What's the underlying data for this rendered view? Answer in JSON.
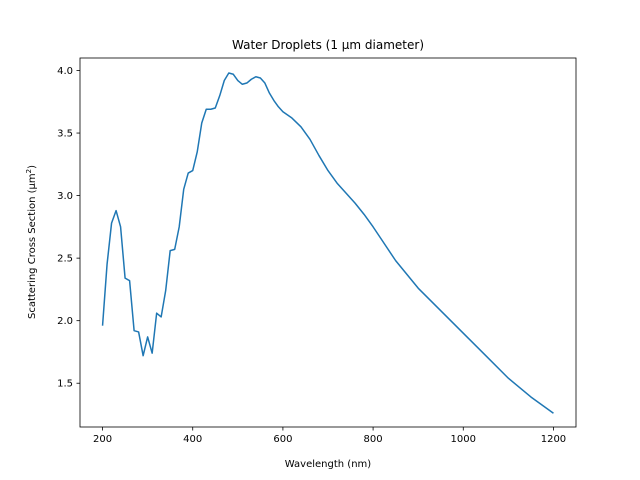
{
  "chart_data": {
    "type": "line",
    "title": "Water Droplets (1 µm diameter)",
    "xlabel": "Wavelength (nm)",
    "ylabel_main": "Scattering Cross Section (µm",
    "ylabel_sup": "2",
    "ylabel_close": ")",
    "xlim": [
      150,
      1250
    ],
    "ylim": [
      1.15,
      4.1
    ],
    "xticks": [
      200,
      400,
      600,
      800,
      1000,
      1200
    ],
    "yticks": [
      1.5,
      2.0,
      2.5,
      3.0,
      3.5,
      4.0
    ],
    "xtick_labels": [
      "200",
      "400",
      "600",
      "800",
      "1000",
      "1200"
    ],
    "ytick_labels": [
      "1.5",
      "2.0",
      "2.5",
      "3.0",
      "3.5",
      "4.0"
    ],
    "grid": false,
    "colors": {
      "line": "#1f77b4"
    },
    "series": [
      {
        "x": [
          200,
          210,
          220,
          230,
          240,
          250,
          260,
          270,
          280,
          290,
          300,
          310,
          320,
          330,
          340,
          350,
          360,
          370,
          380,
          390,
          400,
          410,
          420,
          430,
          440,
          450,
          460,
          470,
          480,
          490,
          500,
          510,
          520,
          530,
          540,
          550,
          560,
          570,
          580,
          590,
          600,
          620,
          640,
          660,
          680,
          700,
          720,
          740,
          760,
          780,
          800,
          850,
          900,
          950,
          1000,
          1050,
          1100,
          1150,
          1200
        ],
        "values": [
          1.96,
          2.45,
          2.78,
          2.88,
          2.75,
          2.34,
          2.32,
          1.92,
          1.91,
          1.72,
          1.87,
          1.74,
          2.06,
          2.03,
          2.24,
          2.56,
          2.57,
          2.75,
          3.05,
          3.18,
          3.2,
          3.35,
          3.58,
          3.69,
          3.69,
          3.7,
          3.8,
          3.92,
          3.98,
          3.97,
          3.92,
          3.89,
          3.9,
          3.93,
          3.95,
          3.94,
          3.9,
          3.82,
          3.76,
          3.71,
          3.67,
          3.62,
          3.55,
          3.45,
          3.32,
          3.2,
          3.1,
          3.02,
          2.94,
          2.85,
          2.75,
          2.48,
          2.26,
          2.08,
          1.9,
          1.72,
          1.54,
          1.39,
          1.26
        ]
      }
    ]
  }
}
